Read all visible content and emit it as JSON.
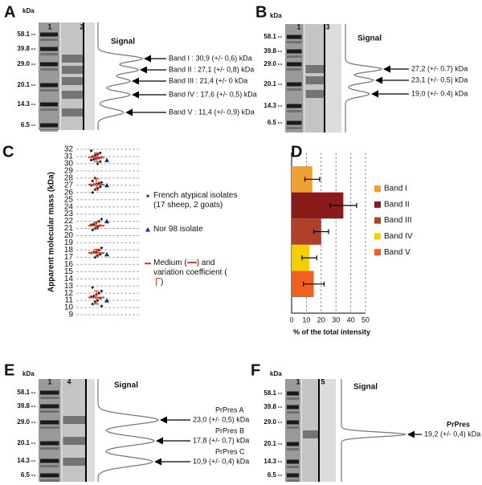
{
  "blots": [
    {
      "label": "A",
      "unit": "kDa",
      "markers": [
        "58.1",
        "39.8",
        "29.0",
        "20.1",
        "14.3",
        "6.5"
      ],
      "lanes": [
        "1",
        "2"
      ],
      "signal": "Signal",
      "bands": [
        {
          "text": "Band I : 30,9 (+/- 0,6) kDa"
        },
        {
          "text": "Band II : 27,1 (+/- 0,8) kDa"
        },
        {
          "text": "Band III : 21,4 (+/- 0     kDa"
        },
        {
          "text": "Band IV : 17,6 (+/- 0,5) kDa"
        },
        {
          "text": "Band V : 11,4 (+/- 0,9) kDa"
        }
      ]
    },
    {
      "label": "B",
      "unit": "kDa",
      "markers": [
        "58.1",
        "39.8",
        "29.0",
        "20.1",
        "14.3",
        "6.5"
      ],
      "lanes": [
        "1",
        "3"
      ],
      "signal": "Signal",
      "bands": [
        {
          "text": "27,2 (+/- 0.7) kDa"
        },
        {
          "text": "23,1 (+/- 0.5) kDa"
        },
        {
          "text": "19,0 (+/- 0.4) kDa"
        }
      ]
    },
    {
      "label": "E",
      "unit": "kDa",
      "markers": [
        "58.1",
        "39.8",
        "29.0",
        "20.1",
        "14.3",
        "6.5"
      ],
      "lanes": [
        "1",
        "4"
      ],
      "signal": "Signal",
      "bands": [
        {
          "name": "PrPres A",
          "text": "23,0 (+/- 0,5) kDa"
        },
        {
          "name": "PrPres B",
          "text": "17,8 (+/- 0,7) kDa"
        },
        {
          "name": "PrPres C",
          "text": "10,9 (+/- 0,4) kDa"
        }
      ]
    },
    {
      "label": "F",
      "unit": "kDa",
      "markers": [
        "58.1",
        "39.8",
        "29.0",
        "20.1",
        "14.3",
        "6.5"
      ],
      "lanes": [
        "1",
        "5"
      ],
      "signal": "Signal",
      "bands": [
        {
          "name": "PrPres",
          "text": "19,2 (+/- 0,4) kDa"
        }
      ]
    }
  ],
  "chart_data": [
    {
      "label": "C",
      "type": "scatter",
      "y_label": "Apparent molecular mass (kDa)",
      "ylim": [
        9,
        32
      ],
      "yticks": [
        9,
        10,
        11,
        12,
        13,
        14,
        15,
        16,
        17,
        18,
        19,
        20,
        21,
        22,
        23,
        24,
        25,
        26,
        27,
        28,
        29,
        30,
        31,
        32
      ],
      "grid": true,
      "series": [
        {
          "name": "French atypical isolates (17 sheep, 2 goats)",
          "color": "#222222",
          "marker": "diamond",
          "values": [
            31.8,
            31.5,
            31.3,
            31.2,
            31,
            30.9,
            30.8,
            30.7,
            30.6,
            30.5,
            30.3,
            30,
            28,
            27.6,
            27.4,
            27.3,
            27.2,
            27.1,
            27,
            26.8,
            26.6,
            26.4,
            26,
            22.3,
            22,
            21.8,
            21.6,
            21.5,
            21.4,
            21.2,
            21,
            20.8,
            18.3,
            18,
            17.8,
            17.7,
            17.6,
            17.4,
            17.2,
            17,
            12.8,
            12.3,
            12,
            11.8,
            11.6,
            11.5,
            11.3,
            11,
            10.8,
            10.5,
            10.2
          ]
        },
        {
          "name": "Nor 98 isolate",
          "color": "#1c2a8c",
          "marker": "triangle",
          "values": [
            30.5,
            27,
            22,
            17.4,
            11
          ]
        },
        {
          "name": [
            "Medium (",
            ") and variation coefficient (",
            ")"
          ],
          "color": "#e8402a",
          "marker": "median",
          "values": [
            30.9,
            27.1,
            21.4,
            17.6,
            11.4
          ],
          "errors": [
            0.6,
            0.8,
            0.5,
            0.5,
            0.9
          ]
        }
      ]
    },
    {
      "label": "D",
      "type": "bar",
      "orientation": "horizontal",
      "x_label": "% of the total intensity",
      "categories": [
        "Band I",
        "Band II",
        "Band III",
        "Band IV",
        "Band V"
      ],
      "values": [
        14,
        35,
        20,
        12,
        15
      ],
      "errors": [
        5,
        9,
        5,
        5,
        7
      ],
      "colors": [
        "#f0a030",
        "#8b1a1a",
        "#b0402a",
        "#f5d000",
        "#f06020"
      ],
      "xlim": [
        0,
        50
      ],
      "xticks": [
        0,
        10,
        20,
        30,
        40,
        50
      ],
      "grid": true
    }
  ]
}
